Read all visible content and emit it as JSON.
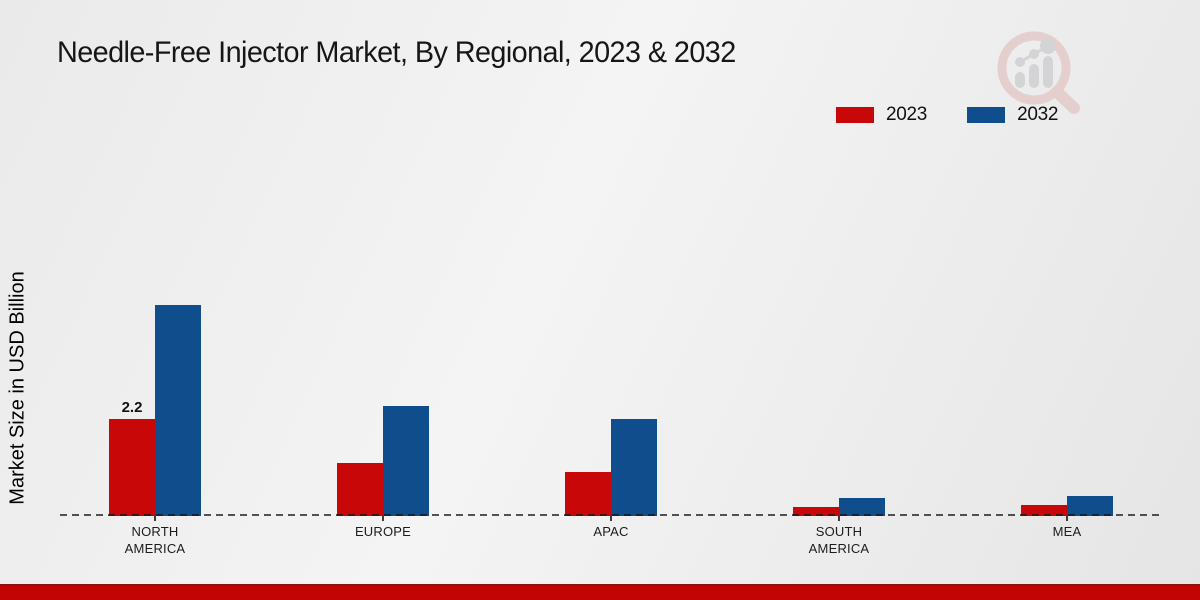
{
  "title": "Needle-Free Injector Market, By Regional, 2023 & 2032",
  "icons": {
    "watermark": "magnifier-bar-chart-logo"
  },
  "chart_data": {
    "type": "bar",
    "categories": [
      "NORTH AMERICA",
      "EUROPE",
      "APAC",
      "SOUTH AMERICA",
      "MEA"
    ],
    "series": [
      {
        "name": "2023",
        "color": "#c80808",
        "values": [
          2.2,
          1.2,
          1.0,
          0.2,
          0.25
        ]
      },
      {
        "name": "2032",
        "color": "#0f4d8c",
        "values": [
          4.8,
          2.5,
          2.2,
          0.4,
          0.45
        ]
      }
    ],
    "title": "Needle-Free Injector Market, By Regional, 2023 & 2032",
    "xlabel": "",
    "ylabel": "Market Size in USD Billion",
    "ylim": [
      0,
      5
    ],
    "grid": false,
    "legend_position": "top-right",
    "bar_labels": [
      {
        "series": "2023",
        "category": "NORTH AMERICA",
        "text": "2.2"
      }
    ]
  },
  "colors": {
    "accent_2023": "#c80808",
    "accent_2032": "#0f4d8c",
    "footer_band": "#c20404",
    "axis_line": "#2e2e2e",
    "watermark_ring": "#e3c9c9",
    "watermark_gray": "#d0d0d4"
  },
  "footer": {
    "note": ""
  }
}
